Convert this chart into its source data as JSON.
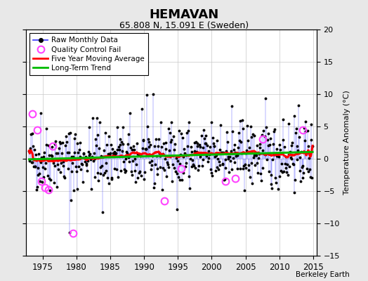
{
  "title": "HEMAVAN",
  "subtitle": "65.808 N, 15.091 E (Sweden)",
  "credit": "Berkeley Earth",
  "ylabel": "Temperature Anomaly (°C)",
  "xlim": [
    1972.5,
    2015.5
  ],
  "ylim": [
    -15,
    20
  ],
  "yticks_left": [
    -15,
    -10,
    -5,
    0,
    5,
    10,
    15,
    20
  ],
  "yticks_right": [
    -15,
    -10,
    -5,
    0,
    5,
    10,
    15,
    20
  ],
  "xticks": [
    1975,
    1980,
    1985,
    1990,
    1995,
    2000,
    2005,
    2010,
    2015
  ],
  "bg_color": "#e8e8e8",
  "plot_bg_color": "#ffffff",
  "line_color": "#4444ff",
  "marker_color": "#000000",
  "moving_avg_color": "#ff0000",
  "trend_color": "#00bb00",
  "qc_fail_color": "#ff44ff",
  "seed": 42,
  "start_year": 1973.0,
  "n_months": 504,
  "qc_fail_positions": [
    [
      1973.5,
      7.0
    ],
    [
      1974.2,
      4.5
    ],
    [
      1974.8,
      -3.5
    ],
    [
      1975.3,
      -4.5
    ],
    [
      1975.9,
      -4.8
    ],
    [
      1976.5,
      2.0
    ],
    [
      1979.5,
      -11.5
    ],
    [
      1993.0,
      -6.5
    ],
    [
      1995.5,
      -1.5
    ],
    [
      2002.0,
      -3.5
    ],
    [
      2003.5,
      -3.0
    ],
    [
      2007.5,
      3.0
    ],
    [
      2013.5,
      4.5
    ]
  ]
}
